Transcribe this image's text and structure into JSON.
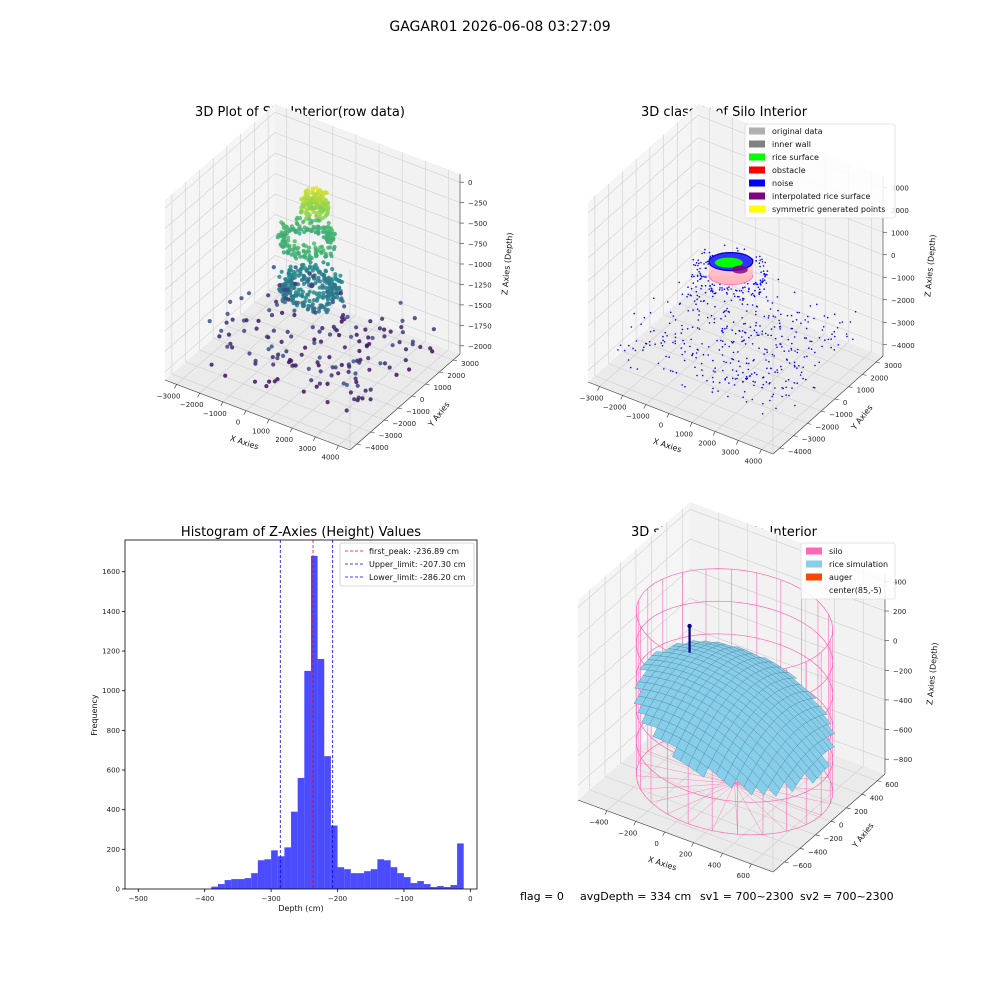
{
  "figure": {
    "suptitle": "GAGAR01 2026-06-08 03:27:09",
    "footer": {
      "flag": "flag = 0",
      "avg_depth": "avgDepth = 334 cm",
      "sv1": "sv1 = 700~2300",
      "sv2": "sv2 = 700~2300"
    }
  },
  "chart_data": [
    {
      "type": "scatter",
      "projection": "3d",
      "title": "3D Plot of Silo Interior(row data)",
      "xlabel": "X Axies",
      "ylabel": "Y Axies",
      "zlabel": "Z Axies (Depth)",
      "x_ticks": [
        -3000,
        -2000,
        -1000,
        0,
        1000,
        2000,
        3000,
        4000
      ],
      "y_ticks": [
        -4000,
        -3000,
        -2000,
        -1000,
        0,
        1000,
        2000,
        3000
      ],
      "z_ticks": [
        -2000,
        -1750,
        -1500,
        -1250,
        -1000,
        -750,
        -500,
        -250,
        0
      ],
      "xlim": [
        -3500,
        4500
      ],
      "ylim": [
        -4500,
        3500
      ],
      "zlim": [
        -2100,
        100
      ],
      "colormap": "viridis",
      "grid": true
    },
    {
      "type": "scatter",
      "projection": "3d",
      "title": "3D classify of Silo Interior",
      "xlabel": "X Axies",
      "ylabel": "Y Axies",
      "zlabel": "Z Axies (Depth)",
      "x_ticks": [
        -3000,
        -2000,
        -1000,
        0,
        1000,
        2000,
        3000,
        4000
      ],
      "y_ticks": [
        -4000,
        -3000,
        -2000,
        -1000,
        0,
        1000,
        2000,
        3000
      ],
      "z_ticks": [
        -4000,
        -3000,
        -2000,
        -1000,
        0,
        1000,
        2000,
        3000
      ],
      "xlim": [
        -3500,
        4500
      ],
      "ylim": [
        -4500,
        3500
      ],
      "zlim": [
        -4500,
        3500
      ],
      "legend_placement": "upper-right",
      "legend": [
        {
          "label": "original data",
          "color": "#b0b0b0"
        },
        {
          "label": "inner wall",
          "color": "#808080"
        },
        {
          "label": "rice surface",
          "color": "#00ff00"
        },
        {
          "label": "obstacle",
          "color": "#ff0000"
        },
        {
          "label": "noise",
          "color": "#0000ff"
        },
        {
          "label": "interpolated rice surface",
          "color": "#800080"
        },
        {
          "label": "symmetric generated points",
          "color": "#ffff00"
        }
      ],
      "grid": true
    },
    {
      "type": "bar",
      "title": "Histogram of Z-Axies (Height) Values",
      "xlabel": "Depth (cm)",
      "ylabel": "Frequency",
      "xlim": [
        -520,
        10
      ],
      "ylim": [
        0,
        1760
      ],
      "x_ticks": [
        -500,
        -400,
        -300,
        -200,
        -100,
        0
      ],
      "y_ticks": [
        0,
        200,
        400,
        600,
        800,
        1000,
        1200,
        1400,
        1600
      ],
      "bin_width": 10,
      "bins_start": [
        -390,
        -380,
        -370,
        -360,
        -350,
        -340,
        -330,
        -320,
        -310,
        -300,
        -290,
        -280,
        -270,
        -260,
        -250,
        -240,
        -230,
        -220,
        -210,
        -200,
        -190,
        -180,
        -170,
        -160,
        -150,
        -140,
        -130,
        -120,
        -110,
        -100,
        -90,
        -80,
        -70,
        -60,
        -50,
        -40,
        -30,
        -20,
        -10
      ],
      "values": [
        12,
        25,
        45,
        50,
        50,
        55,
        80,
        145,
        150,
        195,
        165,
        210,
        390,
        560,
        1100,
        1680,
        1160,
        670,
        320,
        110,
        100,
        80,
        80,
        90,
        100,
        150,
        145,
        110,
        80,
        60,
        30,
        40,
        25,
        10,
        15,
        10,
        20,
        230,
        0
      ],
      "bar_color": "#0000ff",
      "lines": [
        {
          "label": "first_peak: -236.89 cm",
          "x": -236.89,
          "color": "#ff0000"
        },
        {
          "label": "Upper_limit: -207.30 cm",
          "x": -207.3,
          "color": "#0000ff"
        },
        {
          "label": "Lower_limit: -286.20 cm",
          "x": -286.2,
          "color": "#0000ff"
        }
      ],
      "legend_placement": "upper-right",
      "grid": false
    },
    {
      "type": "surface",
      "projection": "3d",
      "title": "3D simulation of Silo Interior",
      "xlabel": "X Axies",
      "ylabel": "Y Axies",
      "zlabel": "Z Axies (Depth)",
      "x_ticks": [
        -400,
        -200,
        0,
        200,
        400,
        600
      ],
      "y_ticks": [
        -600,
        -400,
        -200,
        0,
        200,
        400,
        600
      ],
      "z_ticks": [
        -800,
        -600,
        -400,
        -200,
        0,
        200,
        400
      ],
      "xlim": [
        -600,
        750
      ],
      "ylim": [
        -750,
        700
      ],
      "zlim": [
        -900,
        450
      ],
      "legend_placement": "upper-right",
      "legend": [
        {
          "label": "silo",
          "color": "#ff69b4"
        },
        {
          "label": "rice simulation",
          "color": "#87ceeb"
        },
        {
          "label": "auger",
          "color": "#ff4500"
        },
        {
          "label": "center(85,-5)",
          "color": ""
        }
      ],
      "grid": true
    }
  ]
}
